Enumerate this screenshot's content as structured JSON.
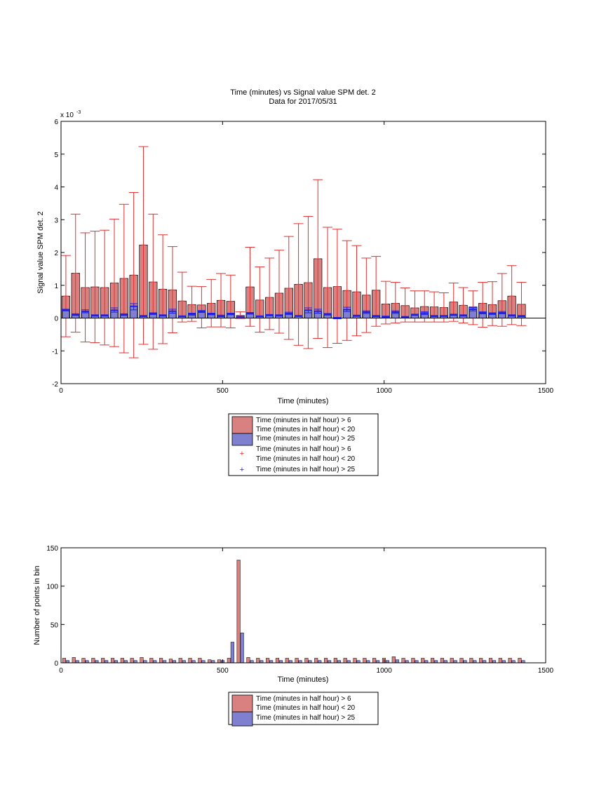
{
  "title": "Time (minutes) vs Signal value SPM det. 2",
  "subtitle": "Data for 2017/05/31",
  "colors": {
    "red_bar": "#d98080",
    "blue_bar": "#8080d0",
    "red_marker": "#e03030",
    "blue_marker": "#2020e0"
  },
  "chart_data": [
    {
      "type": "bar",
      "title": "Time (minutes) vs Signal value SPM det. 2",
      "subtitle": "Data for 2017/05/31",
      "xlabel": "Time (minutes)",
      "ylabel": "Signal value SPM det. 2",
      "exponent_label": "x 10",
      "exponent_power": "-3",
      "xlim": [
        0,
        1500
      ],
      "ylim": [
        -2,
        6
      ],
      "xticks": [
        0,
        500,
        1000,
        1500
      ],
      "yticks": [
        -2,
        -1,
        0,
        1,
        2,
        3,
        4,
        5,
        6
      ],
      "grid": false,
      "legend_position": "below",
      "x": [
        15,
        45,
        75,
        105,
        135,
        165,
        195,
        225,
        255,
        285,
        315,
        345,
        375,
        405,
        435,
        465,
        495,
        525,
        555,
        585,
        615,
        645,
        675,
        705,
        735,
        765,
        795,
        825,
        855,
        885,
        915,
        945,
        975,
        1005,
        1035,
        1065,
        1095,
        1125,
        1155,
        1185,
        1215,
        1245,
        1275,
        1305,
        1335,
        1365,
        1395,
        1425
      ],
      "series": [
        {
          "name": "Time (minutes in half hour) > 6\nTime (minutes in half hour) < 20",
          "kind": "bar",
          "values": [
            0.67,
            1.37,
            0.93,
            0.95,
            0.93,
            1.07,
            1.21,
            1.31,
            2.23,
            1.1,
            0.88,
            0.86,
            0.52,
            0.41,
            0.4,
            0.45,
            0.54,
            0.51,
            0.08,
            0.95,
            0.55,
            0.63,
            0.76,
            0.91,
            1.03,
            1.08,
            1.81,
            0.93,
            0.96,
            0.84,
            0.8,
            0.7,
            0.85,
            0.43,
            0.45,
            0.38,
            0.31,
            0.35,
            0.34,
            0.32,
            0.49,
            0.39,
            0.34,
            0.45,
            0.41,
            0.53,
            0.67,
            0.42
          ],
          "err_low": [
            -0.57,
            -0.43,
            -0.73,
            -0.75,
            -0.82,
            -0.87,
            -1.06,
            -1.21,
            -0.8,
            -0.95,
            -0.78,
            -0.45,
            -0.12,
            -0.1,
            -0.3,
            -0.27,
            -0.27,
            -0.3,
            -0.01,
            -0.25,
            -0.43,
            -0.35,
            -0.46,
            -0.65,
            -0.83,
            -0.93,
            -0.62,
            -0.9,
            -0.77,
            -0.68,
            -0.54,
            -0.44,
            -0.25,
            -0.18,
            -0.15,
            -0.12,
            -0.12,
            -0.12,
            -0.12,
            -0.12,
            -0.1,
            -0.15,
            -0.2,
            -0.28,
            -0.23,
            -0.25,
            -0.2,
            -0.23
          ],
          "err_high": [
            1.91,
            3.17,
            2.6,
            2.65,
            2.68,
            3.02,
            3.47,
            3.83,
            5.23,
            3.17,
            2.54,
            2.18,
            1.4,
            0.97,
            0.96,
            1.18,
            1.36,
            1.31,
            0.19,
            2.16,
            1.56,
            1.83,
            2.07,
            2.49,
            2.88,
            3.1,
            4.22,
            2.77,
            2.71,
            2.36,
            2.21,
            1.83,
            1.88,
            1.12,
            1.09,
            0.92,
            0.83,
            0.83,
            0.8,
            0.77,
            1.07,
            0.93,
            0.83,
            1.09,
            1.11,
            1.36,
            1.6,
            1.09
          ],
          "color": "#d98080"
        },
        {
          "name": "Time (minutes in half hour) > 25",
          "kind": "bar",
          "values": [
            0.24,
            0.1,
            0.2,
            0.08,
            0.08,
            0.24,
            0.1,
            0.36,
            0.06,
            0.13,
            0.08,
            0.21,
            0.05,
            0.12,
            0.2,
            0.12,
            0.06,
            0.12,
            0.04,
            0.14,
            0.05,
            0.09,
            0.08,
            0.14,
            0.06,
            0.24,
            0.21,
            0.11,
            0.0,
            0.26,
            0.07,
            0.18,
            0.06,
            0.04,
            0.18,
            0.03,
            0.1,
            0.15,
            0.06,
            0.06,
            0.1,
            0.08,
            0.27,
            0.16,
            0.13,
            0.16,
            0.08,
            0.06
          ],
          "err_low": [
            0.22,
            0.08,
            0.16,
            0.06,
            0.06,
            0.18,
            0.08,
            0.25,
            0.04,
            0.11,
            0.06,
            0.15,
            0.04,
            0.09,
            0.17,
            0.1,
            0.04,
            0.1,
            0.03,
            0.12,
            0.04,
            0.07,
            0.06,
            0.11,
            0.05,
            0.16,
            0.15,
            0.09,
            -0.02,
            0.2,
            0.05,
            0.14,
            0.04,
            0.02,
            0.14,
            0.0,
            0.08,
            0.11,
            0.04,
            0.05,
            0.08,
            0.06,
            0.22,
            0.13,
            0.11,
            0.13,
            0.06,
            0.04
          ],
          "err_high": [
            0.27,
            0.13,
            0.25,
            0.1,
            0.1,
            0.31,
            0.13,
            0.44,
            0.08,
            0.16,
            0.1,
            0.27,
            0.07,
            0.15,
            0.23,
            0.15,
            0.09,
            0.15,
            0.05,
            0.17,
            0.07,
            0.11,
            0.1,
            0.18,
            0.08,
            0.31,
            0.27,
            0.14,
            0.02,
            0.33,
            0.09,
            0.22,
            0.08,
            0.06,
            0.22,
            0.05,
            0.12,
            0.19,
            0.08,
            0.08,
            0.12,
            0.1,
            0.32,
            0.19,
            0.16,
            0.2,
            0.1,
            0.08
          ],
          "color": "#8080d0"
        }
      ],
      "legend": [
        {
          "text": "Time (minutes in half hour) > 6\nTime (minutes in half hour) < 20",
          "symbol": "bar",
          "color": "#d98080"
        },
        {
          "text": "Time (minutes in half hour) > 25",
          "symbol": "bar",
          "color": "#8080d0"
        },
        {
          "text": "Time (minutes in half hour) > 6\nTime (minutes in half hour) < 20",
          "symbol": "+",
          "color": "#e03030"
        },
        {
          "text": "Time (minutes in half hour) > 25",
          "symbol": "+",
          "color": "#2020e0"
        }
      ]
    },
    {
      "type": "bar",
      "xlabel": "Time (minutes)",
      "ylabel": "Number of points in bin",
      "xlim": [
        0,
        1500
      ],
      "ylim": [
        0,
        150
      ],
      "xticks": [
        0,
        500,
        1000,
        1500
      ],
      "yticks": [
        0,
        50,
        100,
        150
      ],
      "grid": false,
      "legend_position": "below",
      "x": [
        15,
        45,
        75,
        105,
        135,
        165,
        195,
        225,
        255,
        285,
        315,
        345,
        375,
        405,
        435,
        465,
        495,
        525,
        555,
        585,
        615,
        645,
        675,
        705,
        735,
        765,
        795,
        825,
        855,
        885,
        915,
        945,
        975,
        1005,
        1035,
        1065,
        1095,
        1125,
        1155,
        1185,
        1215,
        1245,
        1275,
        1305,
        1335,
        1365,
        1395,
        1425
      ],
      "series": [
        {
          "name": "Time (minutes in half hour) > 6\nTime (minutes in half hour) < 20",
          "values": [
            6,
            7,
            6,
            6,
            6,
            6,
            6,
            6,
            7,
            6,
            6,
            5,
            6,
            6,
            6,
            4,
            4,
            6,
            134,
            7,
            6,
            6,
            6,
            6,
            6,
            6,
            6,
            6,
            6,
            6,
            6,
            6,
            6,
            6,
            8,
            6,
            6,
            6,
            6,
            6,
            6,
            6,
            6,
            6,
            6,
            6,
            6,
            6
          ],
          "color": "#d98080"
        },
        {
          "name": "Time (minutes in half hour) > 25",
          "values": [
            3,
            3,
            3,
            3,
            3,
            3,
            3,
            3,
            3,
            3,
            3,
            3,
            3,
            3,
            3,
            3,
            3,
            27,
            39,
            3,
            3,
            3,
            3,
            3,
            3,
            3,
            3,
            3,
            3,
            3,
            3,
            3,
            3,
            3,
            4,
            3,
            3,
            3,
            3,
            3,
            3,
            3,
            3,
            3,
            3,
            3,
            3,
            3
          ],
          "color": "#8080d0"
        }
      ],
      "legend": [
        {
          "text": "Time (minutes in half hour) > 6\nTime (minutes in half hour) < 20",
          "symbol": "bar",
          "color": "#d98080"
        },
        {
          "text": "Time (minutes in half hour) > 25",
          "symbol": "bar",
          "color": "#8080d0"
        }
      ]
    }
  ]
}
